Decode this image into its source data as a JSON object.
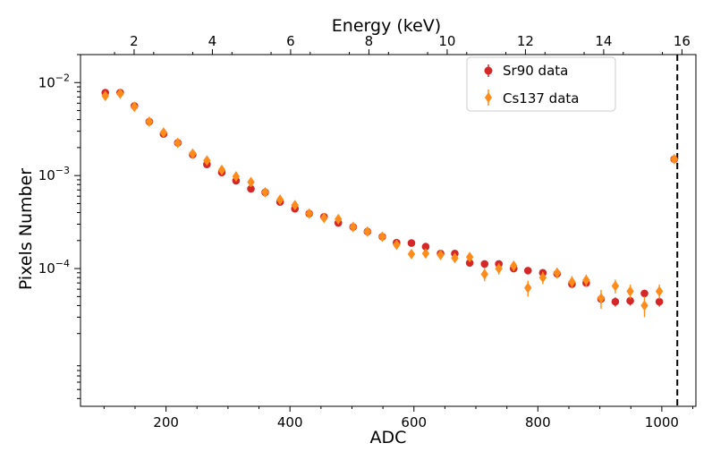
{
  "chart_data": {
    "type": "scatter",
    "xlabel": "ADC",
    "ylabel": "Pixels Number",
    "top_xlabel": "Energy (keV)",
    "xlim": [
      62,
      1055
    ],
    "ylim": [
      3.3e-06,
      0.02
    ],
    "yscale": "log",
    "x_ticks": [
      200,
      400,
      600,
      800,
      1000
    ],
    "top_ticks": [
      2,
      4,
      6,
      8,
      10,
      12,
      14,
      16
    ],
    "top_axis_map": {
      "energy": [
        2,
        16
      ],
      "adc": [
        148.5,
        1032.5
      ]
    },
    "y_tick_labels": [
      {
        "base": "10",
        "exp": "−2",
        "value": 0.01
      },
      {
        "base": "10",
        "exp": "−3",
        "value": 0.001
      },
      {
        "base": "10",
        "exp": "−4",
        "value": 0.0001
      }
    ],
    "vline": {
      "x": 1025,
      "style": "dashed",
      "color": "#000000"
    },
    "legend": {
      "position": "top-right"
    },
    "series": [
      {
        "name": "Sr90 data",
        "color": "#d62728",
        "marker": "circle",
        "x": [
          102,
          126,
          149,
          173,
          196,
          219,
          243,
          266,
          290,
          313,
          337,
          360,
          384,
          408,
          431,
          455,
          478,
          502,
          525,
          549,
          572,
          596,
          619,
          643,
          666,
          690,
          714,
          737,
          761,
          784,
          808,
          831,
          855,
          878,
          902,
          925,
          949,
          972,
          996,
          1020
        ],
        "y": [
          0.0078,
          0.0078,
          0.0056,
          0.0038,
          0.0028,
          0.00225,
          0.00168,
          0.00132,
          0.00108,
          0.00088,
          0.00072,
          0.00066,
          0.00052,
          0.00044,
          0.00039,
          0.00036,
          0.00031,
          0.00028,
          0.00025,
          0.00022,
          0.00019,
          0.000188,
          0.000172,
          0.000145,
          0.000145,
          0.000115,
          0.000112,
          0.000112,
          0.0001,
          9.5e-05,
          9e-05,
          8.8e-05,
          6.8e-05,
          7e-05,
          4.7e-05,
          4.4e-05,
          4.5e-05,
          5.4e-05,
          4.4e-05,
          0.0015
        ],
        "err": [
          0.0002,
          0.0002,
          0.00015,
          0.0001,
          8e-05,
          6e-05,
          5e-05,
          4e-05,
          3e-05,
          3e-05,
          2e-05,
          2e-05,
          2e-05,
          2e-05,
          1.5e-05,
          1.5e-05,
          1.2e-05,
          1e-05,
          1e-05,
          1e-05,
          8e-06,
          8e-06,
          8e-06,
          8e-06,
          8e-06,
          7e-06,
          7e-06,
          7e-06,
          7e-06,
          6e-06,
          6e-06,
          6e-06,
          6e-06,
          6e-06,
          5e-06,
          5e-06,
          5e-06,
          5e-06,
          5e-06,
          5e-05
        ]
      },
      {
        "name": "Cs137 data",
        "color": "#ff8c1a",
        "marker": "diamond",
        "x": [
          102,
          126,
          149,
          173,
          196,
          219,
          243,
          266,
          290,
          313,
          337,
          360,
          384,
          408,
          431,
          455,
          478,
          502,
          525,
          549,
          572,
          596,
          619,
          643,
          666,
          690,
          714,
          737,
          761,
          784,
          808,
          831,
          855,
          878,
          902,
          925,
          949,
          972,
          996,
          1020
        ],
        "y": [
          0.0072,
          0.0076,
          0.0055,
          0.0038,
          0.0029,
          0.00225,
          0.00172,
          0.00145,
          0.00115,
          0.00098,
          0.00085,
          0.00066,
          0.00055,
          0.00048,
          0.00039,
          0.00035,
          0.00034,
          0.00028,
          0.00025,
          0.00022,
          0.00018,
          0.000143,
          0.000145,
          0.00014,
          0.00013,
          0.000133,
          8.7e-05,
          0.0001,
          0.000107,
          6.2e-05,
          8e-05,
          9e-05,
          7.2e-05,
          7.5e-05,
          4.8e-05,
          6.5e-05,
          5.7e-05,
          4e-05,
          5.7e-05,
          0.0015
        ],
        "err": [
          0.0004,
          0.0004,
          0.0003,
          0.0002,
          0.00015,
          0.0001,
          8e-05,
          7e-05,
          6e-05,
          5e-05,
          4e-05,
          3e-05,
          3e-05,
          3e-05,
          2e-05,
          2e-05,
          2e-05,
          1.8e-05,
          1.5e-05,
          1.4e-05,
          1.4e-05,
          1.4e-05,
          1.4e-05,
          1.4e-05,
          1.4e-05,
          1.4e-05,
          1.4e-05,
          1.4e-05,
          1.3e-05,
          1.2e-05,
          1.2e-05,
          1.2e-05,
          1.1e-05,
          1.1e-05,
          1.1e-05,
          1.1e-05,
          1e-05,
          1e-05,
          1e-05,
          6e-05
        ]
      }
    ]
  }
}
